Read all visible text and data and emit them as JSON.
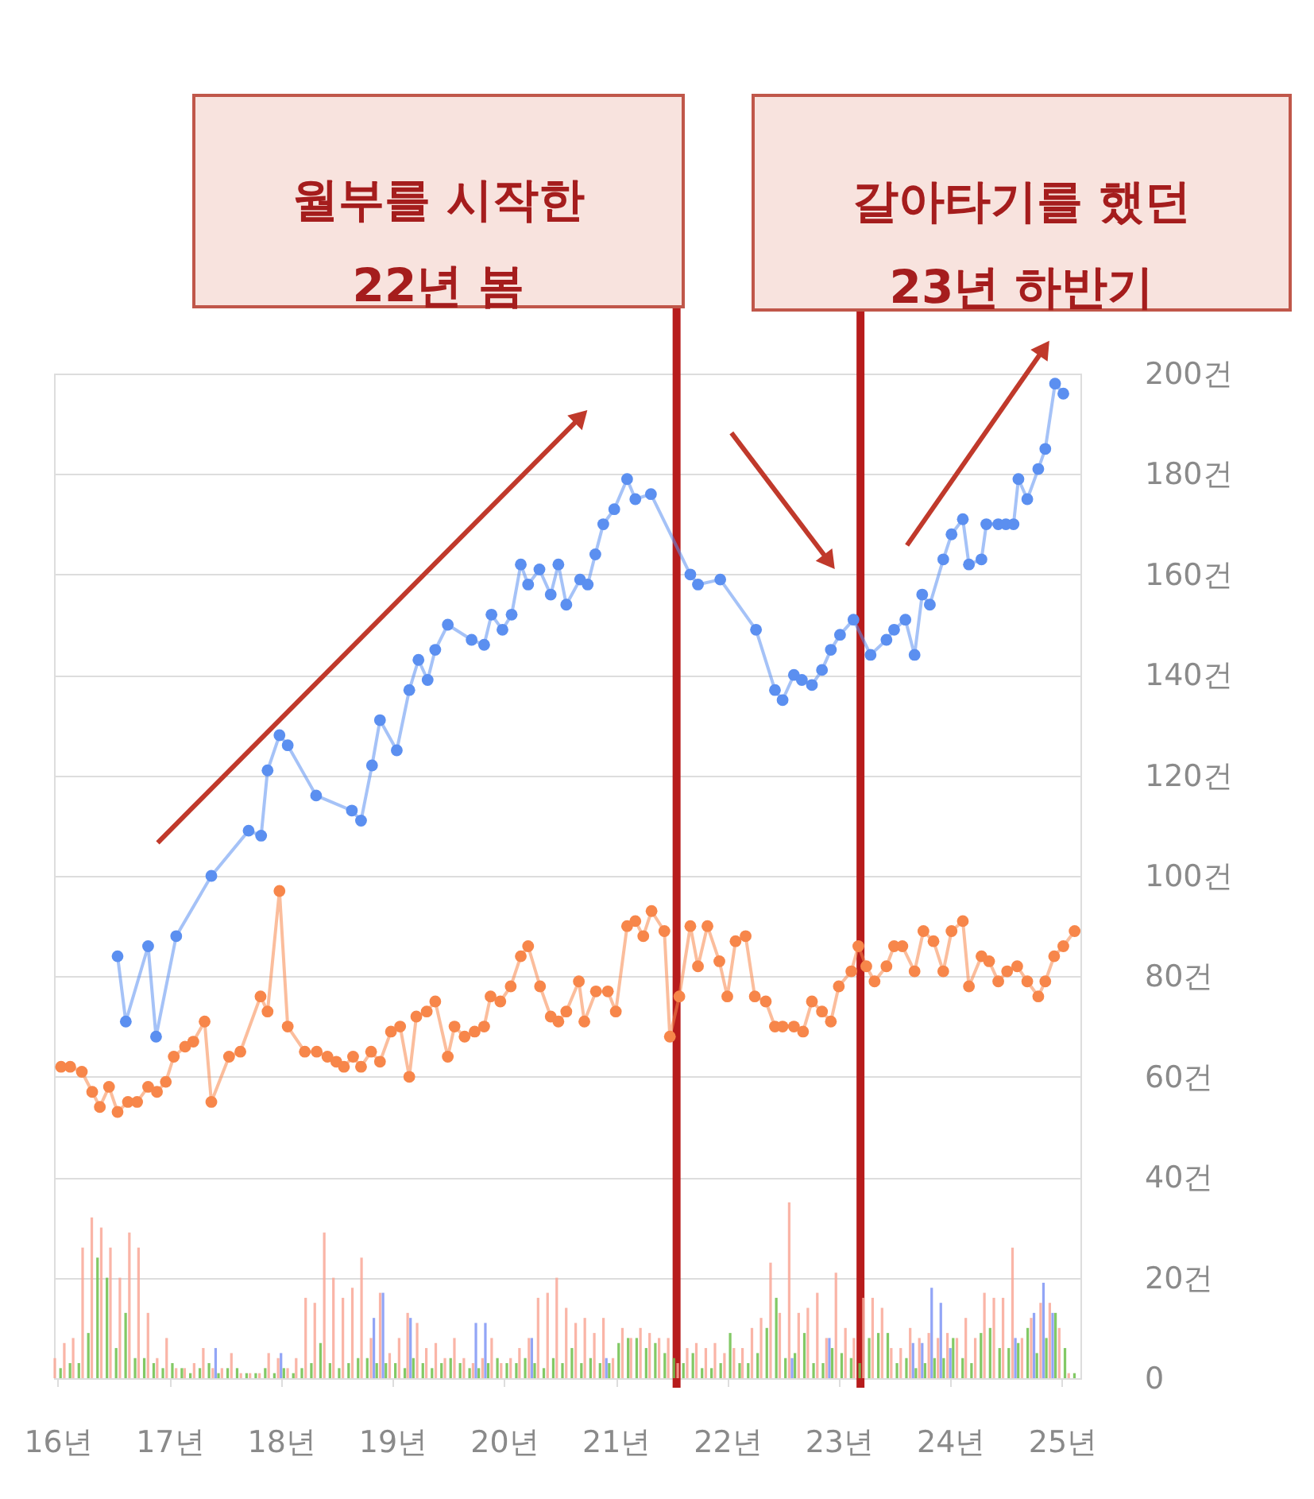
{
  "chart_data": {
    "type": "line",
    "x": [
      "2016-01",
      "2016-02",
      "2016-03",
      "2016-04",
      "2016-05",
      "2016-06",
      "2016-07",
      "2016-08",
      "2016-09",
      "2016-10",
      "2016-11",
      "2016-12",
      "2017-01",
      "2017-02",
      "2017-03",
      "2017-04",
      "2017-05",
      "2017-06",
      "2017-07",
      "2017-08",
      "2017-09",
      "2017-10",
      "2017-11",
      "2017-12",
      "2018-01",
      "2018-02",
      "2018-03",
      "2018-04",
      "2018-05",
      "2018-06",
      "2018-07",
      "2018-08",
      "2018-09",
      "2018-10",
      "2018-11",
      "2018-12",
      "2019-01",
      "2019-02",
      "2019-03",
      "2019-04",
      "2019-05",
      "2019-06",
      "2019-07",
      "2019-08",
      "2019-09",
      "2019-10",
      "2019-11",
      "2019-12",
      "2020-01",
      "2020-02",
      "2020-03",
      "2020-04",
      "2020-05",
      "2020-06",
      "2020-07",
      "2020-08",
      "2020-09",
      "2020-10",
      "2020-11",
      "2020-12",
      "2021-01",
      "2021-02",
      "2021-03",
      "2021-04",
      "2021-05",
      "2021-06",
      "2021-07",
      "2021-08",
      "2021-09",
      "2021-10",
      "2021-11",
      "2021-12",
      "2022-01",
      "2022-02",
      "2022-03",
      "2022-04",
      "2022-05",
      "2022-06",
      "2022-07",
      "2022-08",
      "2022-09",
      "2022-10",
      "2022-11",
      "2022-12",
      "2023-01",
      "2023-02",
      "2023-03",
      "2023-04",
      "2023-05",
      "2023-06",
      "2023-07",
      "2023-08",
      "2023-09",
      "2023-10",
      "2023-11",
      "2023-12",
      "2024-01",
      "2024-02",
      "2024-03",
      "2024-04",
      "2024-05",
      "2024-06",
      "2024-07",
      "2024-08",
      "2024-09",
      "2024-10",
      "2024-11",
      "2024-12",
      "2025-01",
      "2025-02"
    ],
    "series": [
      {
        "type": "bar",
        "color": "#f9a898",
        "values": [
          4,
          7,
          8,
          26,
          32,
          30,
          26,
          20,
          29,
          26,
          13,
          4,
          8,
          2,
          2,
          3,
          6,
          2,
          2,
          5,
          1,
          1,
          1,
          5,
          4,
          2,
          4,
          16,
          15,
          29,
          20,
          16,
          18,
          24,
          8,
          17,
          5,
          8,
          13,
          11,
          6,
          7,
          4,
          8,
          4,
          3,
          4,
          8,
          3,
          4,
          6,
          8,
          16,
          17,
          20,
          14,
          11,
          12,
          9,
          12,
          4,
          10,
          8,
          10,
          9,
          8,
          8,
          3,
          6,
          7,
          6,
          7,
          5,
          6,
          6,
          10,
          12,
          23,
          13,
          35,
          13,
          14,
          17,
          8,
          21,
          10,
          8,
          16,
          16,
          14,
          6,
          6,
          10,
          8,
          9,
          8,
          9,
          8,
          12,
          8,
          17,
          16,
          16,
          26,
          8,
          12,
          15,
          15,
          10,
          1
        ]
      },
      {
        "type": "bar",
        "color": "#7f95f5",
        "values": [
          0,
          0,
          0,
          0,
          0,
          0,
          0,
          0,
          0,
          0,
          0,
          0,
          0,
          0,
          0,
          0,
          0,
          6,
          0,
          0,
          0,
          0,
          0,
          0,
          5,
          0,
          0,
          0,
          0,
          0,
          0,
          0,
          0,
          0,
          12,
          17,
          0,
          0,
          12,
          0,
          0,
          0,
          0,
          0,
          0,
          11,
          11,
          0,
          0,
          0,
          0,
          8,
          0,
          0,
          0,
          0,
          0,
          0,
          0,
          4,
          0,
          0,
          0,
          0,
          0,
          0,
          0,
          0,
          0,
          0,
          0,
          0,
          0,
          0,
          0,
          0,
          0,
          0,
          0,
          4,
          0,
          0,
          0,
          8,
          0,
          0,
          0,
          0,
          0,
          0,
          0,
          0,
          7,
          7,
          18,
          15,
          6,
          0,
          0,
          0,
          0,
          0,
          0,
          8,
          0,
          13,
          19,
          13,
          0,
          0
        ]
      },
      {
        "type": "bar",
        "color": "#6cbf4a",
        "values": [
          2,
          3,
          3,
          9,
          24,
          20,
          6,
          13,
          4,
          4,
          3,
          2,
          3,
          2,
          1,
          2,
          3,
          1,
          2,
          2,
          1,
          1,
          2,
          1,
          2,
          1,
          2,
          3,
          7,
          3,
          2,
          3,
          4,
          4,
          3,
          3,
          3,
          2,
          4,
          3,
          2,
          3,
          4,
          3,
          2,
          2,
          3,
          4,
          3,
          3,
          4,
          3,
          2,
          4,
          3,
          6,
          3,
          4,
          3,
          3,
          7,
          8,
          8,
          6,
          7,
          5,
          4,
          3,
          5,
          2,
          2,
          3,
          9,
          3,
          3,
          5,
          10,
          16,
          4,
          5,
          9,
          3,
          3,
          6,
          5,
          4,
          3,
          8,
          9,
          9,
          3,
          4,
          2,
          3,
          4,
          4,
          8,
          4,
          3,
          9,
          10,
          6,
          6,
          7,
          10,
          5,
          8,
          13,
          6,
          1
        ]
      },
      {
        "color": "#f7864a",
        "x": [
          "2016-01-12",
          "2016-02-11",
          "2016-03-20",
          "2016-04-23",
          "2016-05-18",
          "2016-06-17",
          "2016-07-15",
          "2016-08-18",
          "2016-09-17",
          "2016-10-23",
          "2016-11-21",
          "2016-12-20",
          "2017-01-15",
          "2017-02-21",
          "2017-03-20",
          "2017-04-26",
          "2017-05-18",
          "2017-07-15",
          "2017-08-21",
          "2017-10-26",
          "2017-11-18",
          "2017-12-27",
          "2018-01-23",
          "2018-03-20",
          "2018-04-28",
          "2018-06-02",
          "2018-07-01",
          "2018-07-26",
          "2018-08-25",
          "2018-09-20",
          "2018-10-23",
          "2018-11-21",
          "2018-12-27",
          "2019-01-26",
          "2019-02-25",
          "2019-03-20",
          "2019-04-23",
          "2019-05-21",
          "2019-07-01",
          "2019-07-23",
          "2019-08-25",
          "2019-09-27",
          "2019-10-28",
          "2019-11-18",
          "2019-12-20",
          "2020-01-23",
          "2020-02-25",
          "2020-03-20",
          "2020-04-28",
          "2020-06-02",
          "2020-06-27",
          "2020-07-23",
          "2020-09-02",
          "2020-09-20",
          "2020-10-28",
          "2020-12-06",
          "2021-01-01",
          "2021-02-07",
          "2021-03-06",
          "2021-04-01",
          "2021-04-28",
          "2021-06-09",
          "2021-06-27",
          "2021-07-28",
          "2021-09-02",
          "2021-09-27",
          "2021-10-28",
          "2021-12-06",
          "2022-01-01",
          "2022-01-28",
          "2022-03-02",
          "2022-04-01",
          "2022-05-07",
          "2022-06-06",
          "2022-07-01",
          "2022-08-07",
          "2022-09-06",
          "2022-10-05",
          "2022-11-07",
          "2022-12-06",
          "2023-01-01",
          "2023-02-11",
          "2023-03-06",
          "2023-04-01",
          "2023-04-28",
          "2023-06-06",
          "2023-07-01",
          "2023-07-28",
          "2023-09-06",
          "2023-10-05",
          "2023-11-07",
          "2023-12-09",
          "2024-01-05",
          "2024-02-11",
          "2024-03-02",
          "2024-04-12",
          "2024-05-07",
          "2024-06-06",
          "2024-07-05",
          "2024-08-07",
          "2024-09-09",
          "2024-10-15",
          "2024-11-07",
          "2024-12-06",
          "2025-01-05",
          "2025-02-11"
        ],
        "values": [
          62,
          62,
          61,
          57,
          54,
          58,
          53,
          55,
          55,
          58,
          57,
          59,
          64,
          66,
          67,
          71,
          55,
          64,
          65,
          76,
          73,
          97,
          70,
          65,
          65,
          64,
          63,
          62,
          64,
          62,
          65,
          63,
          69,
          70,
          60,
          72,
          73,
          75,
          64,
          70,
          68,
          69,
          70,
          76,
          75,
          78,
          84,
          86,
          78,
          72,
          71,
          73,
          79,
          71,
          77,
          77,
          73,
          90,
          91,
          88,
          93,
          89,
          68,
          76,
          90,
          82,
          90,
          83,
          76,
          87,
          88,
          76,
          75,
          70,
          70,
          70,
          69,
          75,
          73,
          71,
          78,
          81,
          86,
          82,
          79,
          82,
          86,
          86,
          81,
          89,
          87,
          81,
          89,
          91,
          78,
          84,
          83,
          79,
          81,
          82,
          79,
          76,
          79,
          84,
          86,
          89
        ]
      },
      {
        "color": "#5b8ff0",
        "x": [
          "2016-07-15",
          "2016-08-11",
          "2016-10-23",
          "2016-11-18",
          "2017-01-23",
          "2017-05-18",
          "2017-09-17",
          "2017-10-28",
          "2017-11-18",
          "2017-12-27",
          "2018-01-23",
          "2018-04-26",
          "2018-08-21",
          "2018-09-20",
          "2018-10-26",
          "2018-11-21",
          "2019-01-15",
          "2019-02-25",
          "2019-03-27",
          "2019-04-26",
          "2019-05-21",
          "2019-07-01",
          "2019-09-17",
          "2019-10-28",
          "2019-11-21",
          "2019-12-27",
          "2020-01-26",
          "2020-02-25",
          "2020-03-20",
          "2020-04-26",
          "2020-06-02",
          "2020-06-27",
          "2020-07-23",
          "2020-09-06",
          "2020-10-01",
          "2020-10-26",
          "2020-11-21",
          "2020-12-27",
          "2021-02-07",
          "2021-03-06",
          "2021-04-26",
          "2021-09-02",
          "2021-09-27",
          "2021-12-09",
          "2022-04-05",
          "2022-06-06",
          "2022-07-01",
          "2022-08-07",
          "2022-09-02",
          "2022-10-05",
          "2022-11-07",
          "2022-12-06",
          "2023-01-05",
          "2023-02-18",
          "2023-04-15",
          "2023-06-06",
          "2023-07-01",
          "2023-08-07",
          "2023-09-06",
          "2023-10-01",
          "2023-10-26",
          "2023-12-09",
          "2024-01-05",
          "2024-02-11",
          "2024-03-02",
          "2024-04-12",
          "2024-04-28",
          "2024-06-06",
          "2024-07-01",
          "2024-07-26",
          "2024-08-11",
          "2024-09-09",
          "2024-10-15",
          "2024-11-07",
          "2024-12-09",
          "2025-01-05"
        ],
        "values": [
          84,
          71,
          86,
          68,
          88,
          100,
          109,
          108,
          121,
          128,
          126,
          116,
          113,
          111,
          122,
          131,
          125,
          137,
          143,
          139,
          145,
          150,
          147,
          146,
          152,
          149,
          152,
          162,
          158,
          161,
          156,
          162,
          154,
          159,
          158,
          164,
          170,
          173,
          179,
          175,
          176,
          160,
          158,
          159,
          149,
          137,
          135,
          140,
          139,
          138,
          141,
          145,
          148,
          151,
          144,
          147,
          149,
          151,
          144,
          156,
          154,
          163,
          168,
          171,
          162,
          163,
          170,
          170,
          170,
          170,
          179,
          175,
          181,
          185,
          198,
          196
        ]
      }
    ],
    "xlim": [
      "2015-12-20",
      "2025-03-02"
    ],
    "xticks": [
      {
        "value": "2016",
        "label": "16년"
      },
      {
        "value": "2017",
        "label": "17년"
      },
      {
        "value": "2018",
        "label": "18년"
      },
      {
        "value": "2019",
        "label": "19년"
      },
      {
        "value": "2020",
        "label": "20년"
      },
      {
        "value": "2021",
        "label": "21년"
      },
      {
        "value": "2022",
        "label": "22년"
      },
      {
        "value": "2023",
        "label": "23년"
      },
      {
        "value": "2024",
        "label": "24년"
      },
      {
        "value": "2025",
        "label": "25년"
      }
    ],
    "ylim": [
      0,
      200
    ],
    "yticks": [
      0,
      {
        "value": 20,
        "label": "20건"
      },
      {
        "value": 40,
        "label": "40건"
      },
      {
        "value": 60,
        "label": "60건"
      },
      {
        "value": 80,
        "label": "80건"
      },
      {
        "value": 100,
        "label": "100건"
      },
      {
        "value": 120,
        "label": "120건"
      },
      {
        "value": 140,
        "label": "140건"
      },
      {
        "value": 160,
        "label": "160건"
      },
      {
        "value": 180,
        "label": "180건"
      },
      {
        "value": 200,
        "label": "200건"
      }
    ],
    "grid": "y",
    "marker": "circle",
    "ref_lines": [
      {
        "axis": "x",
        "value": "2021-07-19",
        "label": "월부를 시작한\n22년 봄",
        "color": "#b71c1c"
      },
      {
        "axis": "x",
        "value": "2023-03-13",
        "label": "갈아타기를 했던\n23년 하반기",
        "color": "#b71c1c"
      }
    ]
  }
}
